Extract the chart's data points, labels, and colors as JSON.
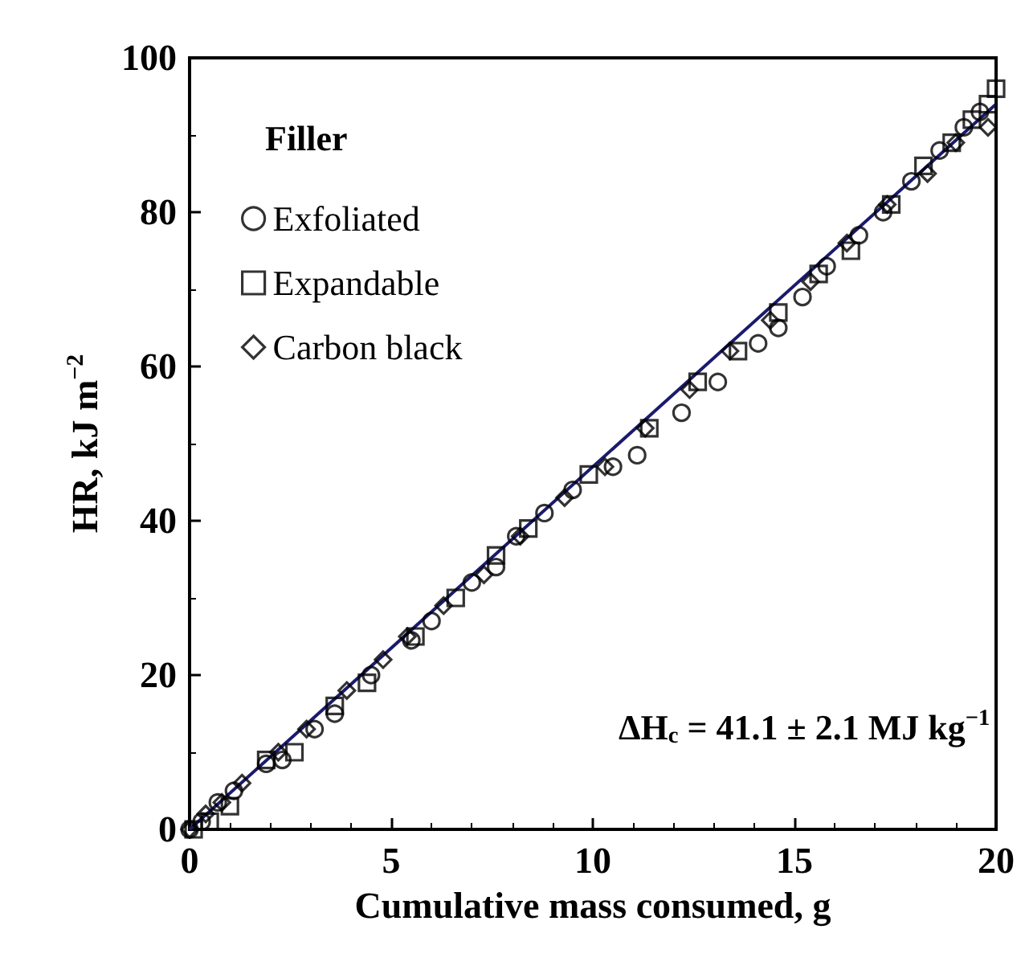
{
  "chart_data": {
    "type": "scatter",
    "xlabel": "Cumulative mass consumed, g",
    "ylabel": "HR, kJ m$^{−2}$",
    "legend_title": "Filler",
    "legend": "top left",
    "grid": false,
    "xlim": [
      0,
      20
    ],
    "xticks": [
      0,
      5,
      10,
      15,
      20
    ],
    "ylim": [
      0,
      100
    ],
    "yticks": [
      0,
      20,
      40,
      60,
      80,
      100
    ],
    "annotations": [
      "ΔH$_{c}$ = 41.1 ± 2.1 MJ kg$^{−1}$"
    ],
    "series": [
      {
        "name": "Exfoliated",
        "color": "#000000",
        "marker": "circle",
        "x": [
          0,
          0.3,
          0.7,
          1.1,
          1.9,
          2.3,
          3.1,
          3.6,
          4.5,
          5.5,
          6.0,
          7.0,
          7.6,
          8.1,
          8.8,
          9.5,
          10.5,
          11.1,
          12.2,
          13.1,
          14.1,
          14.6,
          15.2,
          15.8,
          16.6,
          17.2,
          17.9,
          18.6,
          19.2,
          19.6
        ],
        "values": [
          0,
          1,
          3.5,
          5,
          8.5,
          9,
          13,
          15,
          20,
          24.5,
          27,
          32,
          34,
          38,
          41,
          44,
          47,
          48.5,
          54,
          58,
          63,
          65,
          69,
          73,
          77,
          80,
          84,
          88,
          91,
          93
        ]
      },
      {
        "name": "Expandable",
        "color": "#000000",
        "marker": "square",
        "x": [
          0.1,
          0.5,
          1.0,
          1.9,
          2.6,
          3.6,
          4.4,
          5.6,
          6.6,
          7.6,
          8.4,
          9.9,
          11.4,
          12.6,
          13.6,
          14.6,
          15.6,
          16.4,
          17.4,
          18.2,
          18.9,
          19.4,
          19.8,
          20
        ],
        "values": [
          0,
          1,
          3,
          9,
          10,
          16,
          19,
          25,
          30,
          35.5,
          39,
          46,
          52,
          58,
          62,
          67,
          72,
          75,
          81,
          86,
          89,
          92,
          94,
          96
        ]
      },
      {
        "name": "Carbon black",
        "color": "#000000",
        "marker": "diamond",
        "x": [
          0,
          0.4,
          0.8,
          1.3,
          2.2,
          2.9,
          3.9,
          4.8,
          5.4,
          6.3,
          7.3,
          8.2,
          9.3,
          10.3,
          11.3,
          12.4,
          13.4,
          14.4,
          15.4,
          16.3,
          17.3,
          18.3,
          19.0,
          19.8
        ],
        "values": [
          0,
          2,
          3.5,
          6,
          10,
          13,
          18,
          22,
          25,
          29,
          33,
          38,
          43,
          47,
          52,
          57,
          62,
          66,
          71,
          76,
          81,
          85,
          89,
          91
        ]
      },
      {
        "type": "line",
        "color": "#1a1a6e",
        "marker": "none",
        "line_style": "solid",
        "x": [
          0,
          20
        ],
        "values": [
          0,
          94
        ]
      }
    ]
  }
}
